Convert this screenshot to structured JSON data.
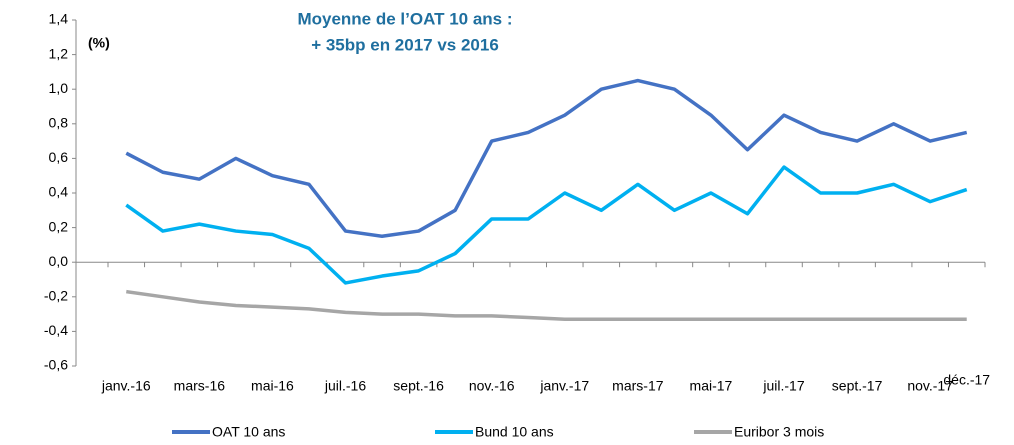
{
  "chart_data": {
    "type": "line",
    "title": [
      "Moyenne de l’OAT 10 ans :",
      "+ 35bp en 2017 vs 2016"
    ],
    "y_axis_label": "(%)",
    "categories": [
      "janv.-16",
      null,
      "mars-16",
      null,
      "mai-16",
      null,
      "juil.-16",
      null,
      "sept.-16",
      null,
      "nov.-16",
      null,
      "janv.-17",
      null,
      "mars-17",
      null,
      "mai-17",
      null,
      "juil.-17",
      null,
      "sept.-17",
      null,
      "nov.-17",
      "déc.-17"
    ],
    "series": [
      {
        "name": "OAT 10 ans",
        "color": "#4472c4",
        "values": [
          0.63,
          0.52,
          0.48,
          0.6,
          0.5,
          0.45,
          0.18,
          0.15,
          0.18,
          0.3,
          0.7,
          0.75,
          0.85,
          1.0,
          1.05,
          1.0,
          0.85,
          0.65,
          0.85,
          0.75,
          0.7,
          0.8,
          0.7,
          0.75
        ]
      },
      {
        "name": "Bund 10 ans",
        "color": "#00b0f0",
        "values": [
          0.33,
          0.18,
          0.22,
          0.18,
          0.16,
          0.08,
          -0.12,
          -0.08,
          -0.05,
          0.05,
          0.25,
          0.25,
          0.4,
          0.3,
          0.45,
          0.3,
          0.4,
          0.28,
          0.55,
          0.4,
          0.4,
          0.45,
          0.35,
          0.42
        ]
      },
      {
        "name": "Euribor 3 mois",
        "color": "#a6a6a6",
        "values": [
          -0.17,
          -0.2,
          -0.23,
          -0.25,
          -0.26,
          -0.27,
          -0.29,
          -0.3,
          -0.3,
          -0.31,
          -0.31,
          -0.32,
          -0.33,
          -0.33,
          -0.33,
          -0.33,
          -0.33,
          -0.33,
          -0.33,
          -0.33,
          -0.33,
          -0.33,
          -0.33,
          -0.33
        ]
      }
    ],
    "ylim": [
      -0.6,
      1.4
    ],
    "yticks": [
      {
        "value": -0.6,
        "label": "-0,6"
      },
      {
        "value": -0.4,
        "label": "-0,4"
      },
      {
        "value": -0.2,
        "label": "-0,2"
      },
      {
        "value": 0,
        "label": "0,0"
      },
      {
        "value": 0.2,
        "label": "0,2"
      },
      {
        "value": 0.4,
        "label": "0,4"
      },
      {
        "value": 0.6,
        "label": "0,6"
      },
      {
        "value": 0.8,
        "label": "0,8"
      },
      {
        "value": 1.0,
        "label": "1,0"
      },
      {
        "value": 1.2,
        "label": "1,2"
      },
      {
        "value": 1.4,
        "label": "1,4"
      }
    ],
    "legend": "bottom"
  }
}
